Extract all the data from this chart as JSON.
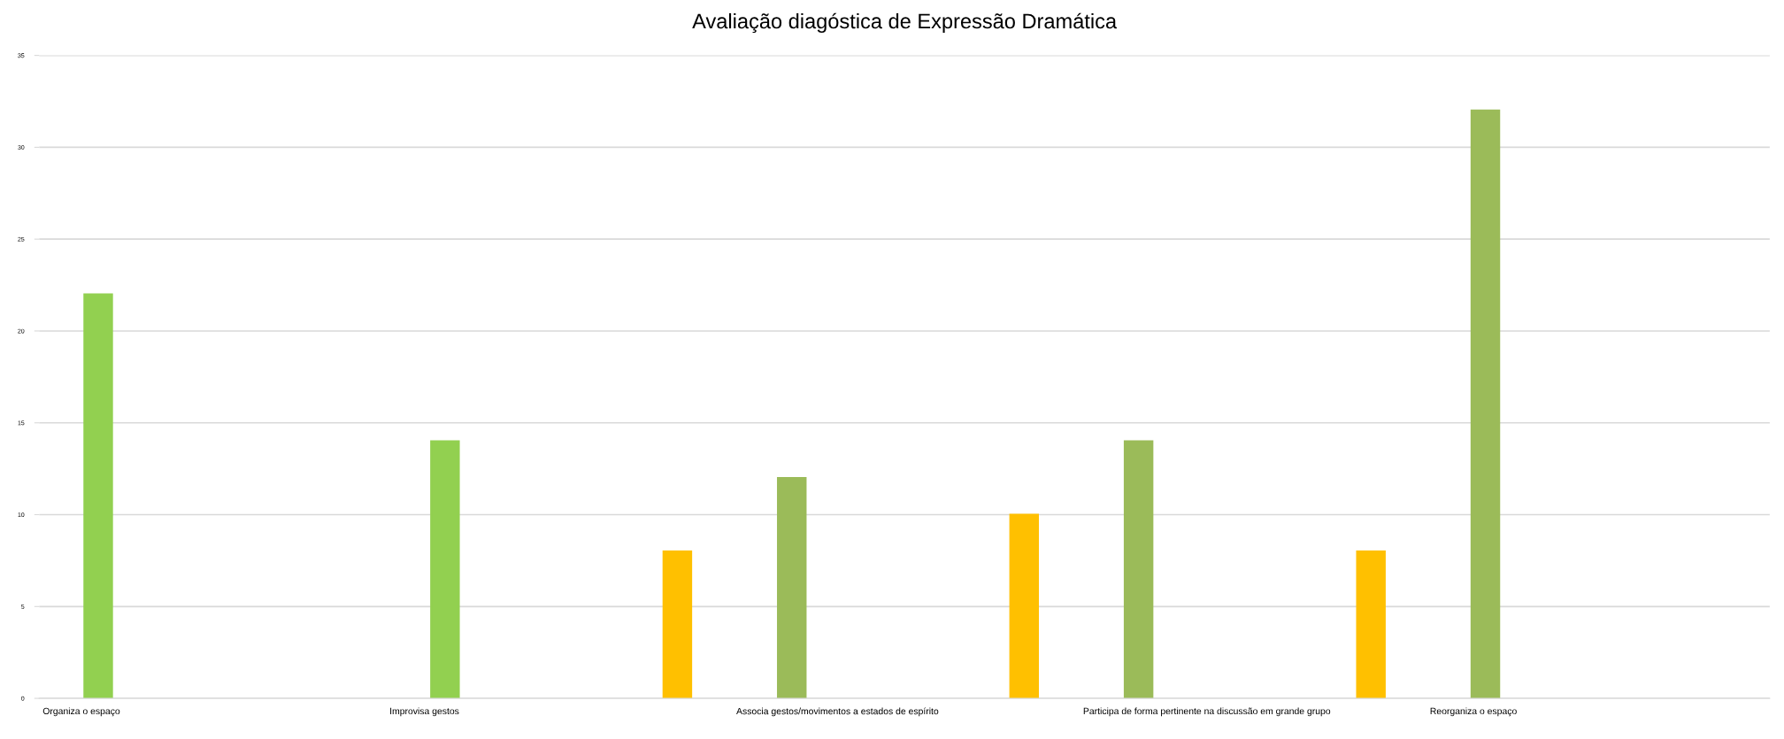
{
  "chart_data": {
    "type": "bar",
    "title": "Avaliação diagóstica de Expressão Dramática",
    "categories": [
      "Organiza o espaço",
      "Improvisa gestos",
      "Associa gestos/movimentos a estados de espírito",
      "Participa de forma pertinente na discussão em grande grupo",
      "Reorganiza o espaço"
    ],
    "series": [
      {
        "color": "#ffc000",
        "values": [
          null,
          null,
          8,
          10,
          8
        ]
      },
      {
        "colors": [
          "#92d050",
          "#92d050",
          "#9bbb59",
          "#9bbb59",
          "#9bbb59"
        ],
        "values": [
          22,
          14,
          12,
          14,
          32
        ]
      }
    ],
    "ylim": [
      0,
      35
    ],
    "yticks": [
      0,
      5,
      10,
      15,
      20,
      25,
      30,
      35
    ],
    "grid": "y"
  }
}
